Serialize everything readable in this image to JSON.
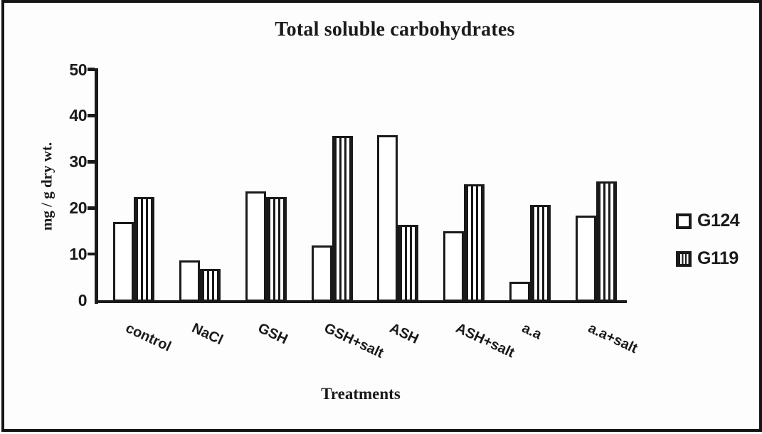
{
  "figure": {
    "title": "Total soluble carbohydrates",
    "x_axis_title": "Treatments",
    "y_axis_title": "mg / g dry wt."
  },
  "chart_data": {
    "type": "bar",
    "title": "Total soluble carbohydrates",
    "xlabel": "Treatments",
    "ylabel": "mg / g dry wt.",
    "categories": [
      "control",
      "NaCl",
      "GSH",
      "GSH+salt",
      "ASH",
      "ASH+salt",
      "a.a",
      "a.a+salt"
    ],
    "series": [
      {
        "name": "G124",
        "fill": "white",
        "values": [
          17.0,
          8.6,
          23.6,
          11.9,
          35.8,
          15.0,
          4.0,
          18.4
        ]
      },
      {
        "name": "G119",
        "fill": "vertical-stripes",
        "values": [
          22.4,
          6.8,
          22.4,
          35.6,
          16.3,
          25.1,
          20.6,
          25.8
        ]
      }
    ],
    "ylim": [
      0,
      50
    ],
    "yticks": [
      0,
      10,
      20,
      30,
      40,
      50
    ],
    "grid": false,
    "legend": {
      "position": "right",
      "entries": [
        "G124",
        "G119"
      ]
    },
    "colors": {
      "ink": "#1a1a1a",
      "background": "#fdfdfd"
    }
  }
}
